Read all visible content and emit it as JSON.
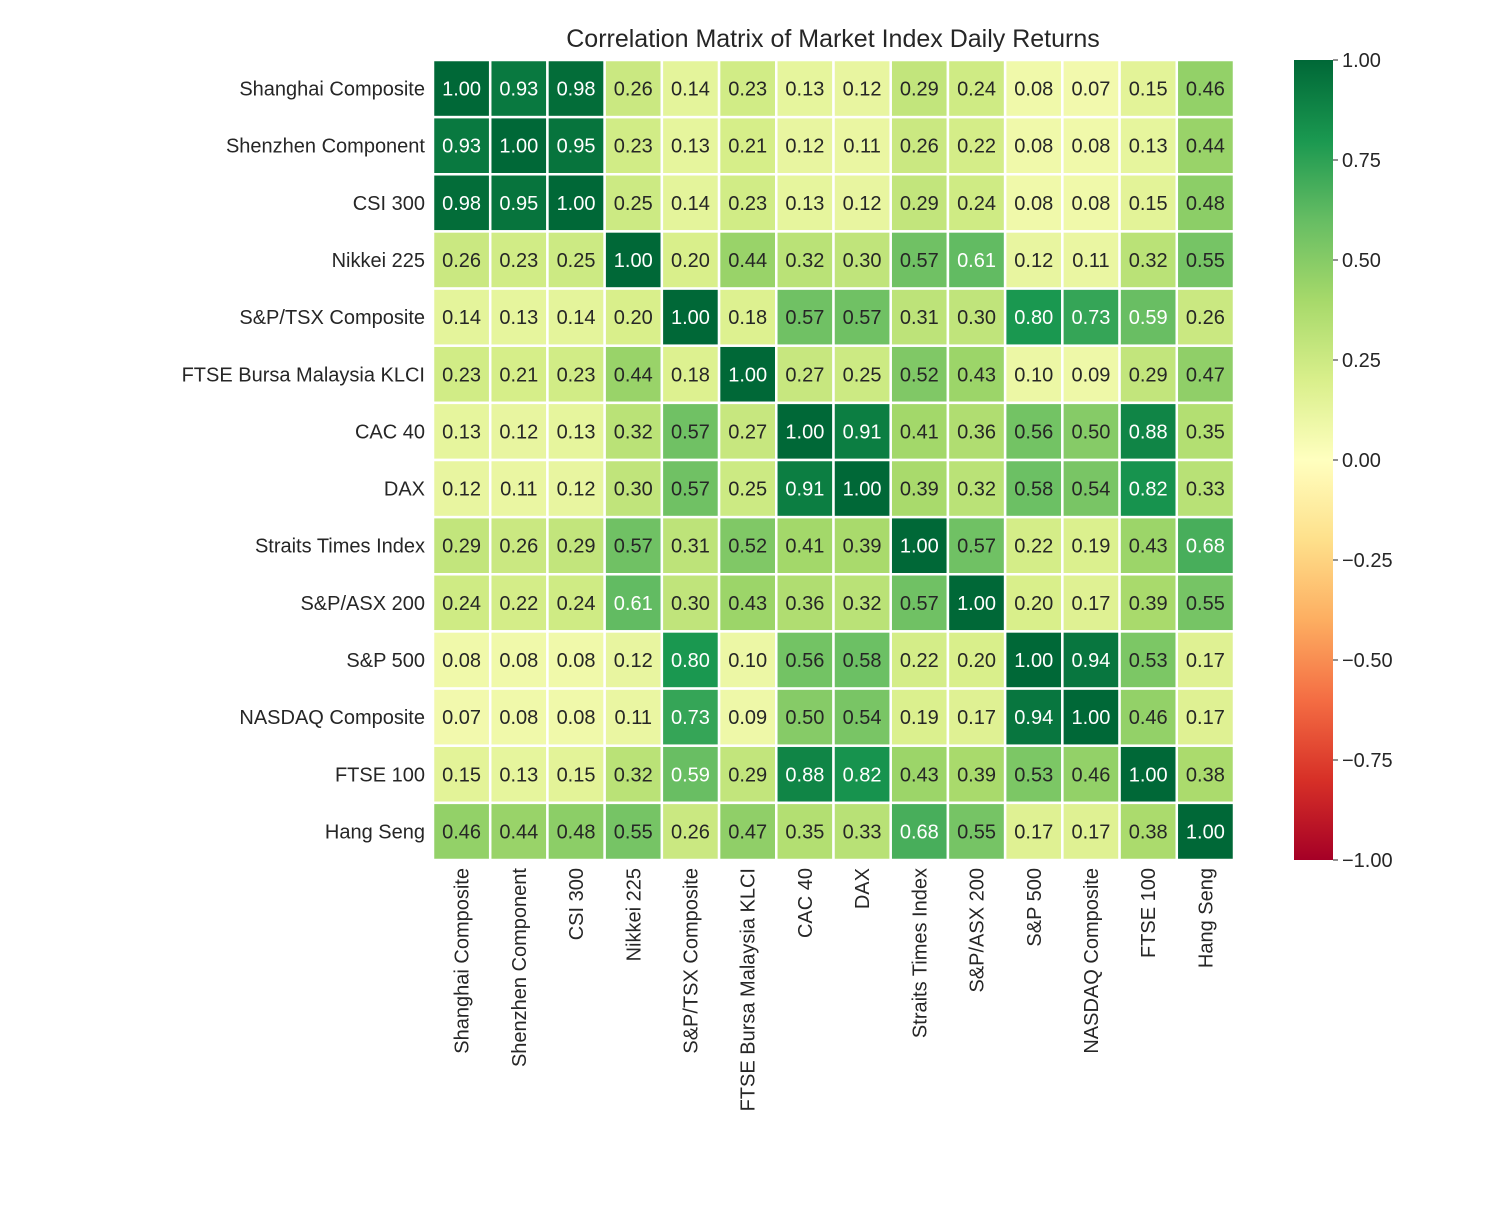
{
  "chart_data": {
    "type": "heatmap",
    "title": "Correlation Matrix of Market Index Daily Returns",
    "labels": [
      "Shanghai Composite",
      "Shenzhen Component",
      "CSI 300",
      "Nikkei 225",
      "S&P/TSX Composite",
      "FTSE Bursa Malaysia KLCI",
      "CAC 40",
      "DAX",
      "Straits Times Index",
      "S&P/ASX 200",
      "S&P 500",
      "NASDAQ Composite",
      "FTSE 100",
      "Hang Seng"
    ],
    "values": [
      [
        1.0,
        0.93,
        0.98,
        0.26,
        0.14,
        0.23,
        0.13,
        0.12,
        0.29,
        0.24,
        0.08,
        0.07,
        0.15,
        0.46
      ],
      [
        0.93,
        1.0,
        0.95,
        0.23,
        0.13,
        0.21,
        0.12,
        0.11,
        0.26,
        0.22,
        0.08,
        0.08,
        0.13,
        0.44
      ],
      [
        0.98,
        0.95,
        1.0,
        0.25,
        0.14,
        0.23,
        0.13,
        0.12,
        0.29,
        0.24,
        0.08,
        0.08,
        0.15,
        0.48
      ],
      [
        0.26,
        0.23,
        0.25,
        1.0,
        0.2,
        0.44,
        0.32,
        0.3,
        0.57,
        0.61,
        0.12,
        0.11,
        0.32,
        0.55
      ],
      [
        0.14,
        0.13,
        0.14,
        0.2,
        1.0,
        0.18,
        0.57,
        0.57,
        0.31,
        0.3,
        0.8,
        0.73,
        0.59,
        0.26
      ],
      [
        0.23,
        0.21,
        0.23,
        0.44,
        0.18,
        1.0,
        0.27,
        0.25,
        0.52,
        0.43,
        0.1,
        0.09,
        0.29,
        0.47
      ],
      [
        0.13,
        0.12,
        0.13,
        0.32,
        0.57,
        0.27,
        1.0,
        0.91,
        0.41,
        0.36,
        0.56,
        0.5,
        0.88,
        0.35
      ],
      [
        0.12,
        0.11,
        0.12,
        0.3,
        0.57,
        0.25,
        0.91,
        1.0,
        0.39,
        0.32,
        0.58,
        0.54,
        0.82,
        0.33
      ],
      [
        0.29,
        0.26,
        0.29,
        0.57,
        0.31,
        0.52,
        0.41,
        0.39,
        1.0,
        0.57,
        0.22,
        0.19,
        0.43,
        0.68
      ],
      [
        0.24,
        0.22,
        0.24,
        0.61,
        0.3,
        0.43,
        0.36,
        0.32,
        0.57,
        1.0,
        0.2,
        0.17,
        0.39,
        0.55
      ],
      [
        0.08,
        0.08,
        0.08,
        0.12,
        0.8,
        0.1,
        0.56,
        0.58,
        0.22,
        0.2,
        1.0,
        0.94,
        0.53,
        0.17
      ],
      [
        0.07,
        0.08,
        0.08,
        0.11,
        0.73,
        0.09,
        0.5,
        0.54,
        0.19,
        0.17,
        0.94,
        1.0,
        0.46,
        0.17
      ],
      [
        0.15,
        0.13,
        0.15,
        0.32,
        0.59,
        0.29,
        0.88,
        0.82,
        0.43,
        0.39,
        0.53,
        0.46,
        1.0,
        0.38
      ],
      [
        0.46,
        0.44,
        0.48,
        0.55,
        0.26,
        0.47,
        0.35,
        0.33,
        0.68,
        0.55,
        0.17,
        0.17,
        0.38,
        1.0
      ]
    ],
    "colormap": "RdYlGn",
    "vmin": -1,
    "vmax": 1,
    "colorbar_ticks": [
      "1.00",
      "0.75",
      "0.50",
      "0.25",
      "0.00",
      "−0.25",
      "−0.50",
      "−0.75",
      "−1.00"
    ],
    "colorbar_values": [
      1,
      0.75,
      0.5,
      0.25,
      0,
      -0.25,
      -0.5,
      -0.75,
      -1
    ],
    "annotation_format": "0.00",
    "colorbar_location": "right"
  }
}
